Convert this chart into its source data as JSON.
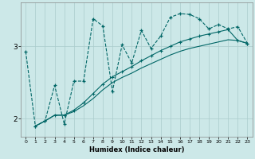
{
  "xlabel": "Humidex (Indice chaleur)",
  "bg_color": "#cce8e8",
  "grid_color": "#aacccc",
  "line_color": "#006666",
  "xlim": [
    -0.5,
    23.5
  ],
  "ylim": [
    1.75,
    3.6
  ],
  "yticks": [
    2,
    3
  ],
  "xticks": [
    0,
    1,
    2,
    3,
    4,
    5,
    6,
    7,
    8,
    9,
    10,
    11,
    12,
    13,
    14,
    15,
    16,
    17,
    18,
    19,
    20,
    21,
    22,
    23
  ],
  "s1_x": [
    0,
    1,
    2,
    3,
    4,
    5,
    6,
    7,
    8,
    9,
    10,
    11,
    12,
    13,
    14,
    15,
    16,
    17,
    18,
    19,
    20,
    21,
    22,
    23
  ],
  "s1_y": [
    2.93,
    1.9,
    1.97,
    2.46,
    1.93,
    2.52,
    2.52,
    3.38,
    3.28,
    2.38,
    3.02,
    2.77,
    3.22,
    2.97,
    3.14,
    3.4,
    3.45,
    3.44,
    3.38,
    3.24,
    3.3,
    3.24,
    3.27,
    3.04
  ],
  "s2_x": [
    1,
    2,
    3,
    4,
    5,
    6,
    7,
    8,
    9,
    10,
    11,
    12,
    13,
    14,
    15,
    16,
    17,
    18,
    19,
    20,
    21,
    22,
    23
  ],
  "s2_y": [
    1.9,
    1.97,
    2.05,
    2.05,
    2.12,
    2.22,
    2.35,
    2.48,
    2.58,
    2.65,
    2.72,
    2.8,
    2.87,
    2.94,
    3.0,
    3.06,
    3.1,
    3.14,
    3.17,
    3.2,
    3.23,
    3.08,
    3.04
  ],
  "s3_x": [
    1,
    2,
    3,
    4,
    5,
    6,
    7,
    8,
    9,
    10,
    11,
    12,
    13,
    14,
    15,
    16,
    17,
    18,
    19,
    20,
    21,
    22,
    23
  ],
  "s3_y": [
    1.9,
    1.97,
    2.05,
    2.05,
    2.1,
    2.18,
    2.28,
    2.4,
    2.5,
    2.57,
    2.63,
    2.7,
    2.76,
    2.82,
    2.88,
    2.93,
    2.97,
    3.0,
    3.03,
    3.06,
    3.09,
    3.08,
    3.04
  ]
}
